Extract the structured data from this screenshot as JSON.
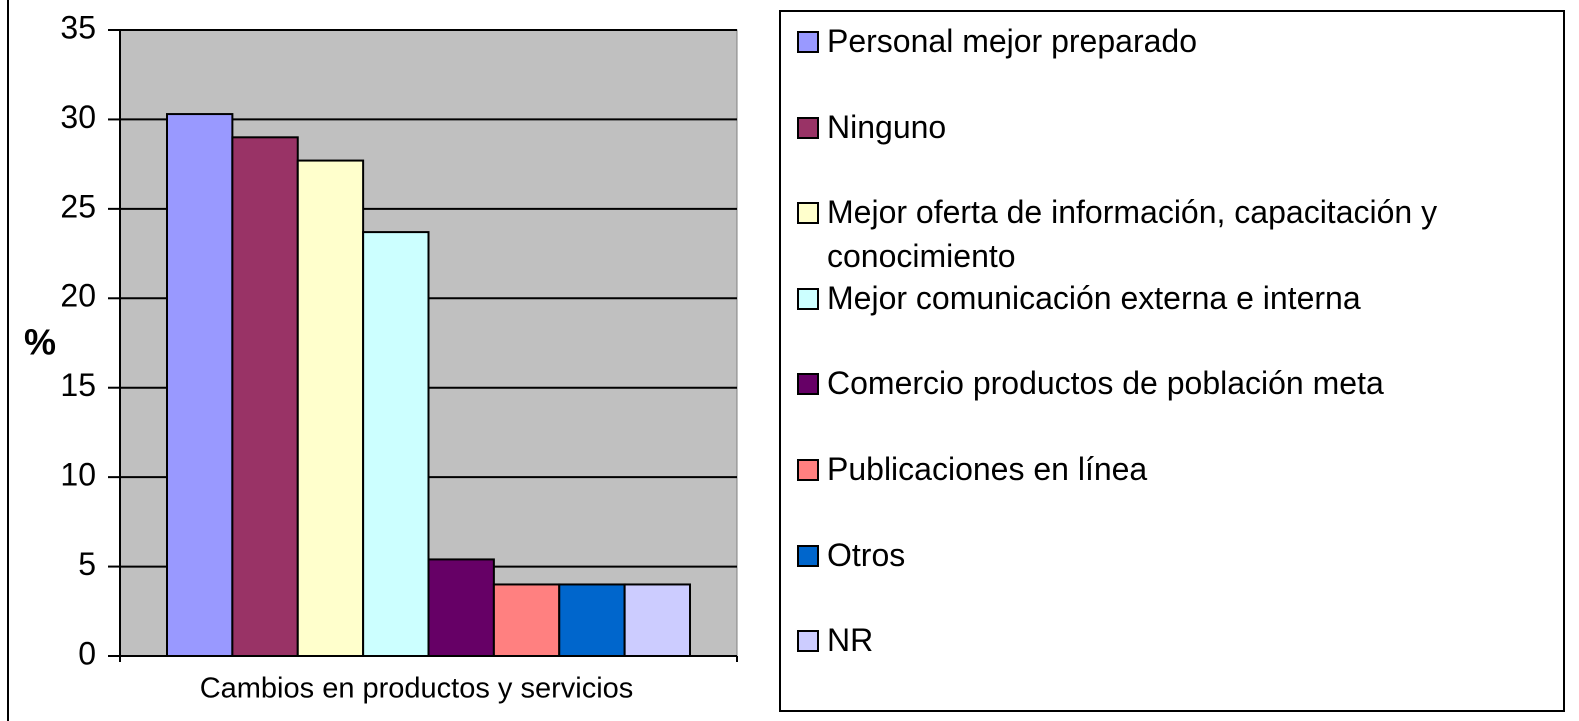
{
  "chart_data": {
    "type": "bar",
    "categories": [
      "Cambios en productos y servicios"
    ],
    "ylabel": "%",
    "series": [
      {
        "name": "Personal mejor preparado",
        "color": "#9999ff",
        "values": [
          30.3
        ]
      },
      {
        "name": "Ninguno",
        "color": "#993366",
        "values": [
          29.0
        ]
      },
      {
        "name": "Mejor oferta de información, capacitación y conocimiento",
        "color": "#ffffcc",
        "values": [
          27.7
        ]
      },
      {
        "name": "Mejor comunicación externa e interna",
        "color": "#ccffff",
        "values": [
          23.7
        ]
      },
      {
        "name": "Comercio productos de población meta",
        "color": "#660066",
        "values": [
          5.4
        ]
      },
      {
        "name": "Publicaciones en línea",
        "color": "#ff8080",
        "values": [
          4.0
        ]
      },
      {
        "name": "Otros",
        "color": "#0066cc",
        "values": [
          4.0
        ]
      },
      {
        "name": "NR",
        "color": "#ccccff",
        "values": [
          4.0
        ]
      }
    ],
    "ylim": [
      0,
      35
    ],
    "yticks": [
      0,
      5,
      10,
      15,
      20,
      25,
      30,
      35
    ],
    "grid": true,
    "legend": "right",
    "plot_background": "#c0c0c0"
  }
}
